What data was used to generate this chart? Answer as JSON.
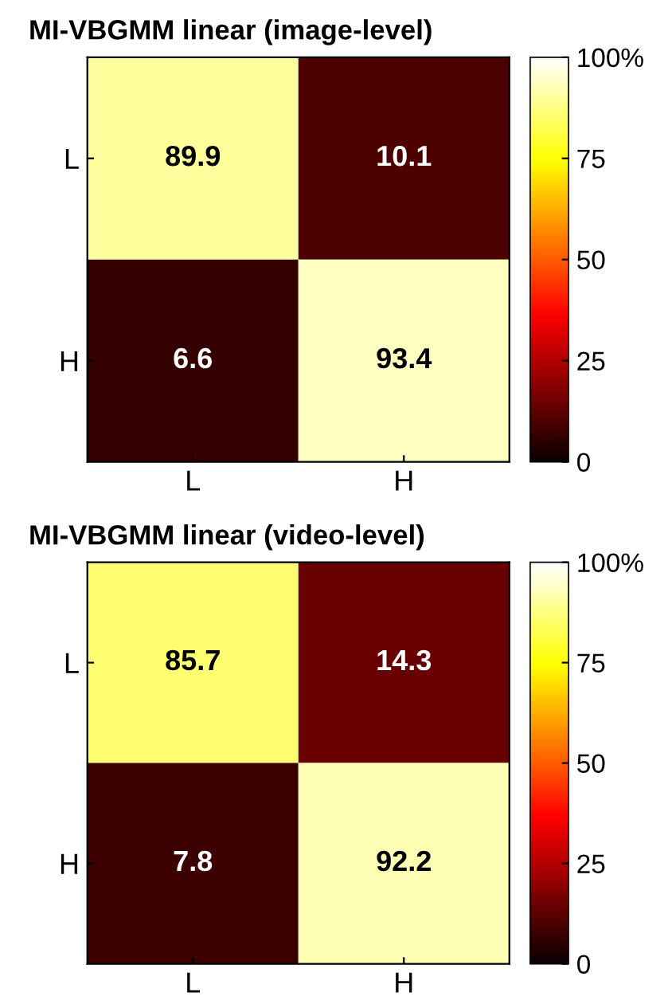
{
  "chart_data": [
    {
      "type": "heatmap",
      "title": "MI-VBGMM linear (image-level)",
      "categories": [
        "L",
        "H"
      ],
      "y_categories": [
        "L",
        "H"
      ],
      "cells": [
        [
          89.9,
          10.1
        ],
        [
          6.6,
          93.4
        ]
      ],
      "clim": [
        0,
        100
      ],
      "cticks": [
        0,
        25,
        50,
        75,
        {
          "value": 100,
          "label": "100%"
        }
      ],
      "data_labels": true
    },
    {
      "type": "heatmap",
      "title": "MI-VBGMM linear (video-level)",
      "categories": [
        "L",
        "H"
      ],
      "y_categories": [
        "L",
        "H"
      ],
      "cells": [
        [
          85.7,
          14.3
        ],
        [
          7.8,
          92.2
        ]
      ],
      "clim": [
        0,
        100
      ],
      "cticks": [
        0,
        25,
        50,
        75,
        {
          "value": 100,
          "label": "100%"
        }
      ],
      "data_labels": true
    }
  ]
}
